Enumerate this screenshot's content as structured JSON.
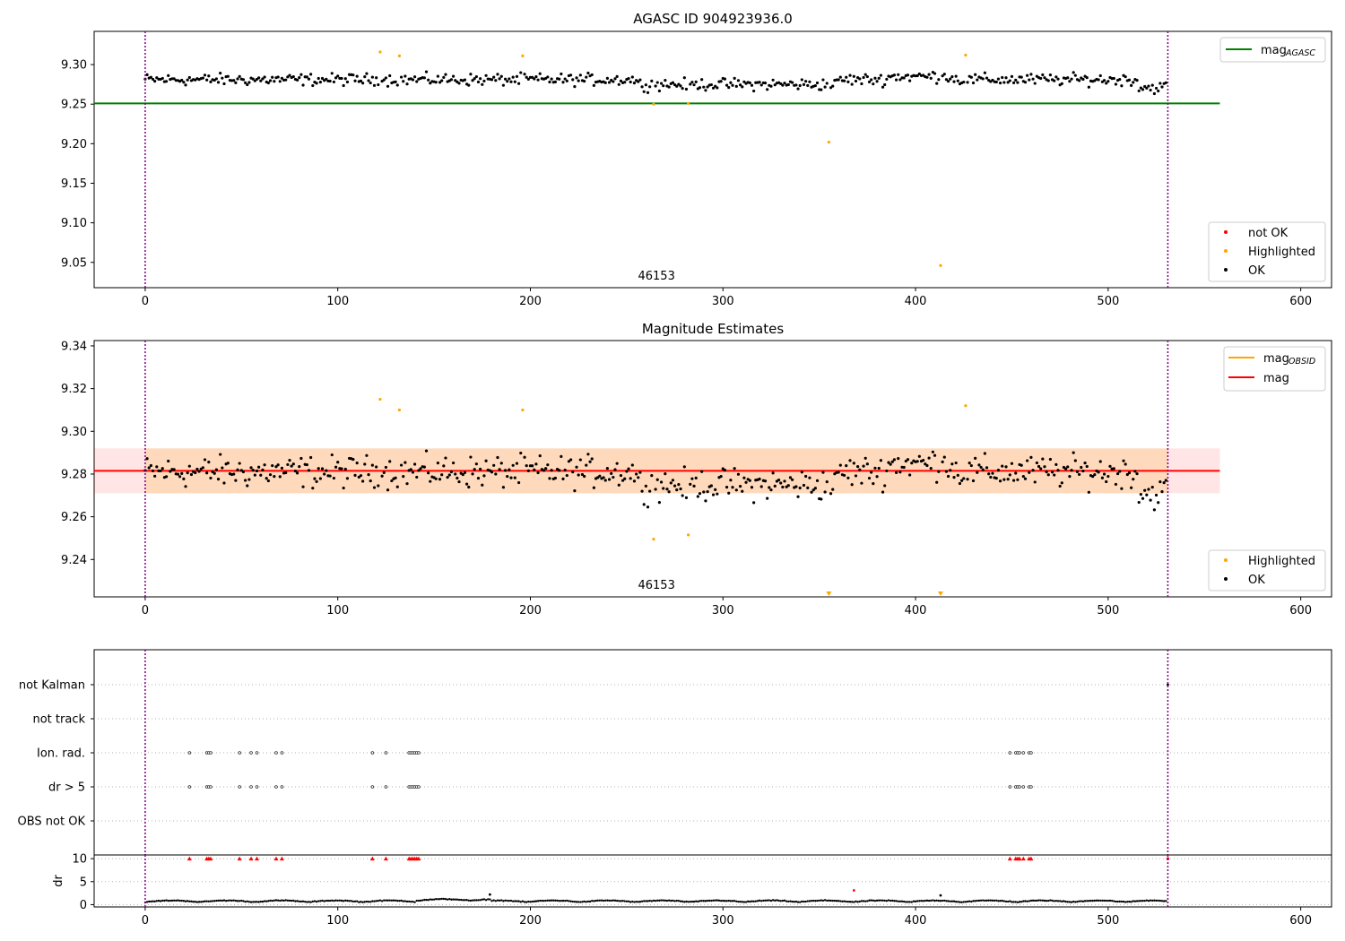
{
  "figure": {
    "background": "#ffffff"
  },
  "chart_data": [
    {
      "type": "scatter",
      "title": "AGASC ID 904923936.0",
      "xlim": [
        -26.5,
        616
      ],
      "ylim": [
        9.018,
        9.342
      ],
      "xticks": [
        0,
        100,
        200,
        300,
        400,
        500,
        600
      ],
      "yticks": [
        9.05,
        9.1,
        9.15,
        9.2,
        9.25,
        9.3
      ],
      "ytick_labels": [
        "9.05",
        "9.10",
        "9.15",
        "9.20",
        "9.25",
        "9.30"
      ],
      "vlines": [
        0,
        531
      ],
      "obsid_label": {
        "text": "46153",
        "x": 265.5,
        "y": 9.028
      },
      "mag_agasc": {
        "value": 9.251,
        "x_range": [
          -26.5,
          558
        ],
        "color": "#008000"
      },
      "line_legend": {
        "placement": "upper right",
        "entries": [
          {
            "label": "mag",
            "sub": "AGASC",
            "color": "#008000"
          }
        ]
      },
      "point_legend": {
        "placement": "lower right",
        "entries": [
          {
            "label": "not OK",
            "color": "#ff0000"
          },
          {
            "label": "Highlighted",
            "color": "#ffa500"
          },
          {
            "label": "OK",
            "color": "#000000"
          }
        ]
      },
      "n_points": 531,
      "base_level": 9.281,
      "noise_amplitude": 0.011,
      "highlighted_points": [
        {
          "x": 122,
          "y": 9.316
        },
        {
          "x": 132,
          "y": 9.311
        },
        {
          "x": 196,
          "y": 9.311
        },
        {
          "x": 264,
          "y": 9.25
        },
        {
          "x": 282,
          "y": 9.251
        },
        {
          "x": 355,
          "y": 9.202
        },
        {
          "x": 413,
          "y": 9.046
        },
        {
          "x": 426,
          "y": 9.312
        }
      ]
    },
    {
      "type": "scatter",
      "title": "Magnitude Estimates",
      "xlim": [
        -26.5,
        616
      ],
      "ylim": [
        9.2225,
        9.3425
      ],
      "xticks": [
        0,
        100,
        200,
        300,
        400,
        500,
        600
      ],
      "yticks": [
        9.24,
        9.26,
        9.28,
        9.3,
        9.32,
        9.34
      ],
      "ytick_labels": [
        "9.24",
        "9.26",
        "9.28",
        "9.30",
        "9.32",
        "9.34"
      ],
      "vlines": [
        0,
        531
      ],
      "obsid_label": {
        "text": "46153",
        "x": 265.5,
        "y": 9.2255
      },
      "mag": {
        "value": 9.2815,
        "x_range": [
          -26.5,
          558
        ],
        "color": "#ff0000"
      },
      "mag_band": {
        "low": 9.271,
        "high": 9.292,
        "x_range": [
          -26.5,
          558
        ],
        "color": "#ff0000"
      },
      "mag_obsid": {
        "low": 9.271,
        "high": 9.292,
        "x_range": [
          0,
          531
        ],
        "color": "#ffa500"
      },
      "line_legend": {
        "placement": "upper right",
        "entries": [
          {
            "label": "mag",
            "sub": "OBSID",
            "color": "#ffa500"
          },
          {
            "label": "mag",
            "sub": "",
            "color": "#ff0000"
          }
        ]
      },
      "point_legend": {
        "placement": "lower right",
        "entries": [
          {
            "label": "Highlighted",
            "color": "#ffa500"
          },
          {
            "label": "OK",
            "color": "#000000"
          }
        ]
      },
      "highlighted_points": [
        {
          "x": 122,
          "y": 9.315
        },
        {
          "x": 132,
          "y": 9.31
        },
        {
          "x": 196,
          "y": 9.31
        },
        {
          "x": 264,
          "y": 9.2495
        },
        {
          "x": 282,
          "y": 9.2515
        },
        {
          "x": 426,
          "y": 9.312
        }
      ],
      "clipped_markers": [
        {
          "x": 355
        },
        {
          "x": 413
        }
      ]
    },
    {
      "type": "scatter",
      "title": "",
      "xlim": [
        -26.5,
        616
      ],
      "categories": [
        "not Kalman",
        "not track",
        "Ion. rad.",
        "dr > 5",
        "OBS not OK"
      ],
      "vlines": [
        0,
        531
      ],
      "flag_indices": [
        23,
        32,
        33,
        34,
        49,
        55,
        58,
        68,
        71,
        118,
        125,
        137,
        138,
        139,
        140,
        141,
        142,
        449,
        452,
        453,
        454,
        456,
        459,
        460
      ],
      "flag_rows": [
        "Ion. rad.",
        "dr > 5"
      ],
      "not_kalman_points": [
        531
      ]
    },
    {
      "type": "scatter",
      "title": "",
      "ylabel": "dr",
      "xlim": [
        -26.5,
        616
      ],
      "ylim": [
        -0.5,
        10.8
      ],
      "xticks": [
        0,
        100,
        200,
        300,
        400,
        500,
        600
      ],
      "yticks": [
        0,
        5,
        10
      ],
      "ytick_labels": [
        "0",
        "5",
        "10"
      ],
      "vlines": [
        0,
        531
      ],
      "clip_value": 10,
      "clipped_marker_color": "#ff0000",
      "outliers": [
        {
          "x": 179,
          "y": 2.2,
          "color": "#000000"
        },
        {
          "x": 368,
          "y": 3.1,
          "color": "#ff0000"
        },
        {
          "x": 413,
          "y": 2.0,
          "color": "#000000"
        }
      ]
    }
  ]
}
